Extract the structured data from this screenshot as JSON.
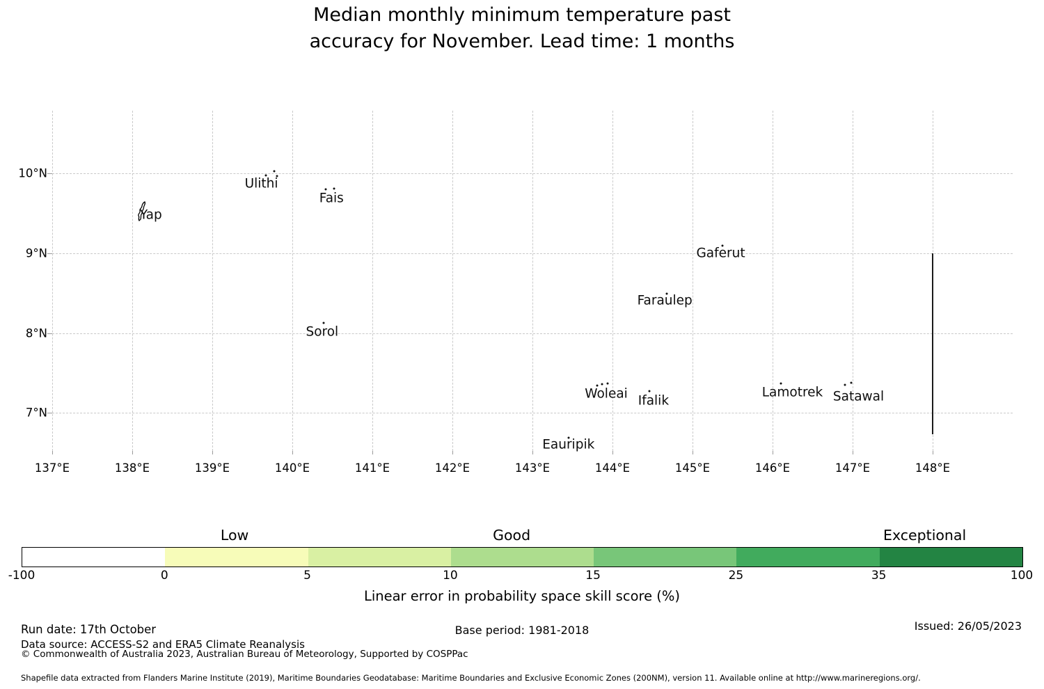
{
  "title": {
    "line1": "Median monthly minimum temperature past",
    "line2": "accuracy for November. Lead time: 1 months"
  },
  "chart_data": {
    "type": "scatter",
    "title": "Median monthly minimum temperature past accuracy for November. Lead time: 1 months",
    "xlabel": "",
    "ylabel": "",
    "xlim": [
      137,
      149
    ],
    "ylim": [
      6.52,
      10.79
    ],
    "grid": true,
    "x_ticks": [
      {
        "label": "137°E",
        "lon": 137
      },
      {
        "label": "138°E",
        "lon": 138
      },
      {
        "label": "139°E",
        "lon": 139
      },
      {
        "label": "140°E",
        "lon": 140
      },
      {
        "label": "141°E",
        "lon": 141
      },
      {
        "label": "142°E",
        "lon": 142
      },
      {
        "label": "143°E",
        "lon": 143
      },
      {
        "label": "144°E",
        "lon": 144
      },
      {
        "label": "145°E",
        "lon": 145
      },
      {
        "label": "146°E",
        "lon": 146
      },
      {
        "label": "147°E",
        "lon": 147
      },
      {
        "label": "148°E",
        "lon": 148
      }
    ],
    "y_ticks": [
      {
        "label": "7°N",
        "lat": 7
      },
      {
        "label": "8°N",
        "lat": 8
      },
      {
        "label": "9°N",
        "lat": 9
      },
      {
        "label": "10°N",
        "lat": 10
      }
    ],
    "islands": [
      {
        "name": "Yap",
        "lon": 138.12,
        "lat": 9.53,
        "label_offset": [
          13,
          6
        ],
        "marker": "yap-outline",
        "dots": []
      },
      {
        "name": "Ulithi",
        "lon": 139.77,
        "lat": 10.03,
        "label_offset": [
          -18,
          18
        ],
        "dots": [
          [
            0,
            0
          ],
          [
            -12,
            6
          ],
          [
            4,
            7
          ]
        ]
      },
      {
        "name": "Fais",
        "lon": 140.42,
        "lat": 9.8,
        "label_offset": [
          8,
          13
        ],
        "dots": [
          [
            0,
            0
          ],
          [
            12,
            -1
          ]
        ]
      },
      {
        "name": "Gaferut",
        "lon": 145.37,
        "lat": 9.1,
        "label_offset": [
          -2,
          11
        ],
        "dots": [
          [
            0,
            0
          ]
        ]
      },
      {
        "name": "Faraulep",
        "lon": 144.68,
        "lat": 8.49,
        "label_offset": [
          -3,
          10
        ],
        "dots": [
          [
            0,
            0
          ]
        ]
      },
      {
        "name": "Sorol",
        "lon": 140.39,
        "lat": 8.13,
        "label_offset": [
          -2,
          13
        ],
        "dots": [
          [
            0,
            0
          ]
        ]
      },
      {
        "name": "Woleai",
        "lon": 143.87,
        "lat": 7.36,
        "label_offset": [
          6,
          14
        ],
        "dots": [
          [
            0,
            0
          ],
          [
            -7,
            2
          ],
          [
            8,
            -1
          ]
        ]
      },
      {
        "name": "Ifalik",
        "lon": 144.46,
        "lat": 7.27,
        "label_offset": [
          6,
          14
        ],
        "dots": [
          [
            0,
            0
          ]
        ]
      },
      {
        "name": "Eauripik",
        "lon": 143.45,
        "lat": 6.69,
        "label_offset": [
          0,
          10
        ],
        "dots": [
          [
            0,
            0
          ]
        ]
      },
      {
        "name": "Lamotrek",
        "lon": 146.1,
        "lat": 7.37,
        "label_offset": [
          17,
          13
        ],
        "dots": [
          [
            0,
            0
          ]
        ]
      },
      {
        "name": "Satawal",
        "lon": 146.9,
        "lat": 7.35,
        "label_offset": [
          20,
          17
        ],
        "dots": [
          [
            0,
            0
          ],
          [
            9,
            -3
          ]
        ]
      }
    ],
    "boundary_line": {
      "lon": 148,
      "lat_top": 9.0,
      "lat_bottom": 6.73,
      "color": "#1a1a1a"
    }
  },
  "colorbar": {
    "label": "Linear error in probability space skill score (%)",
    "categories": [
      {
        "label": "Low",
        "pos_pct": 21.3
      },
      {
        "label": "Good",
        "pos_pct": 49.0
      },
      {
        "label": "Exceptional",
        "pos_pct": 90.3
      }
    ],
    "ticks": [
      {
        "label": "-100",
        "pos_pct": 0
      },
      {
        "label": "0",
        "pos_pct": 14.29
      },
      {
        "label": "5",
        "pos_pct": 28.57
      },
      {
        "label": "10",
        "pos_pct": 42.86
      },
      {
        "label": "15",
        "pos_pct": 57.14
      },
      {
        "label": "25",
        "pos_pct": 71.43
      },
      {
        "label": "35",
        "pos_pct": 85.71
      },
      {
        "label": "100",
        "pos_pct": 100
      }
    ],
    "segments": [
      {
        "from": -100,
        "to": 0,
        "color": "#ffffff"
      },
      {
        "from": 0,
        "to": 5,
        "color": "#f7fcb9"
      },
      {
        "from": 5,
        "to": 10,
        "color": "#d9f0a3"
      },
      {
        "from": 10,
        "to": 15,
        "color": "#addd8e"
      },
      {
        "from": 15,
        "to": 25,
        "color": "#78c679"
      },
      {
        "from": 25,
        "to": 35,
        "color": "#41ab5d"
      },
      {
        "from": 35,
        "to": 100,
        "color": "#238443"
      }
    ]
  },
  "footer": {
    "run_date": "Run date: 17th October",
    "base_period": "Base period: 1981-2018",
    "issued": "Issued: 26/05/2023",
    "data_source": "Data source: ACCESS-S2 and ERA5 Climate Reanalysis",
    "copyright": "© Commonwealth of Australia 2023, Australian Bureau of Meteorology, Supported by COSPPac",
    "shapefile_note": "Shapefile data extracted from Flanders Marine Institute (2019), Maritime Boundaries Geodatabase: Maritime Boundaries and Exclusive Economic Zones (200NM), version 11. Available online at http://www.marineregions.org/."
  }
}
